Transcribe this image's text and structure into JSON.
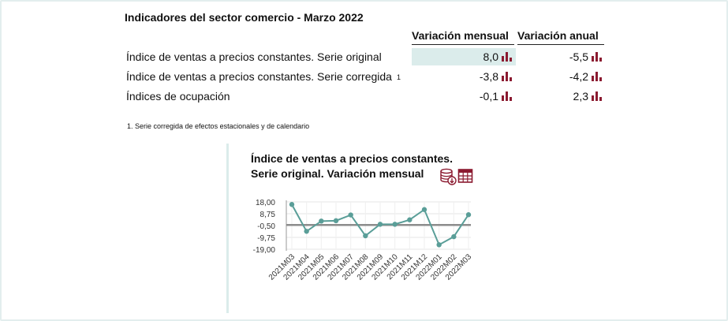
{
  "header": {
    "title": "Indicadores del sector comercio - Marzo 2022"
  },
  "table": {
    "col_monthly": "Variación mensual",
    "col_annual": "Variación anual",
    "rows": [
      {
        "label": "Índice de ventas a precios constantes. Serie original",
        "note": "",
        "monthly": "8,0",
        "annual": "-5,5"
      },
      {
        "label": "Índice de ventas a precios constantes. Serie corregida",
        "note": "1",
        "monthly": "-3,8",
        "annual": "-4,2"
      },
      {
        "label": "Índices de ocupación",
        "note": "",
        "monthly": "-0,1",
        "annual": "2,3"
      }
    ],
    "chart_icon": "bar-chart-icon"
  },
  "footnote": "1. Serie corregida de efectos estacionales y de calendario",
  "chart_panel": {
    "title_line1": "Índice de ventas a precios constantes.",
    "title_line2": "Serie original. Variación mensual",
    "download_icon": "database-download-icon",
    "table_icon": "table-grid-icon"
  },
  "colors": {
    "accent_dark_red": "#8b1a30",
    "teal_line": "#5a9e98",
    "highlight": "#dbeceb",
    "zero_line": "#8c8c8c"
  },
  "chart_data": {
    "type": "line",
    "title": "Índice de ventas a precios constantes. Serie original. Variación mensual",
    "categories": [
      "2021M03",
      "2021M04",
      "2021M05",
      "2021M06",
      "2021M07",
      "2021M08",
      "2021M09",
      "2021M10",
      "2021M11",
      "2021M12",
      "2022M01",
      "2022M02",
      "2022M03"
    ],
    "series": [
      {
        "values": [
          16.0,
          -5.0,
          3.0,
          3.3,
          7.8,
          -8.5,
          0.5,
          0.5,
          4.0,
          12.0,
          -15.5,
          -9.2,
          8.0
        ]
      }
    ],
    "yticks": [
      "18,00",
      "8,75",
      "-0,50",
      "-9,75",
      "-19,00"
    ],
    "ytick_values": [
      18.0,
      8.75,
      -0.5,
      -9.75,
      -19.0
    ],
    "ylim": [
      -19.0,
      18.0
    ],
    "zero_line": true,
    "grid": true
  }
}
